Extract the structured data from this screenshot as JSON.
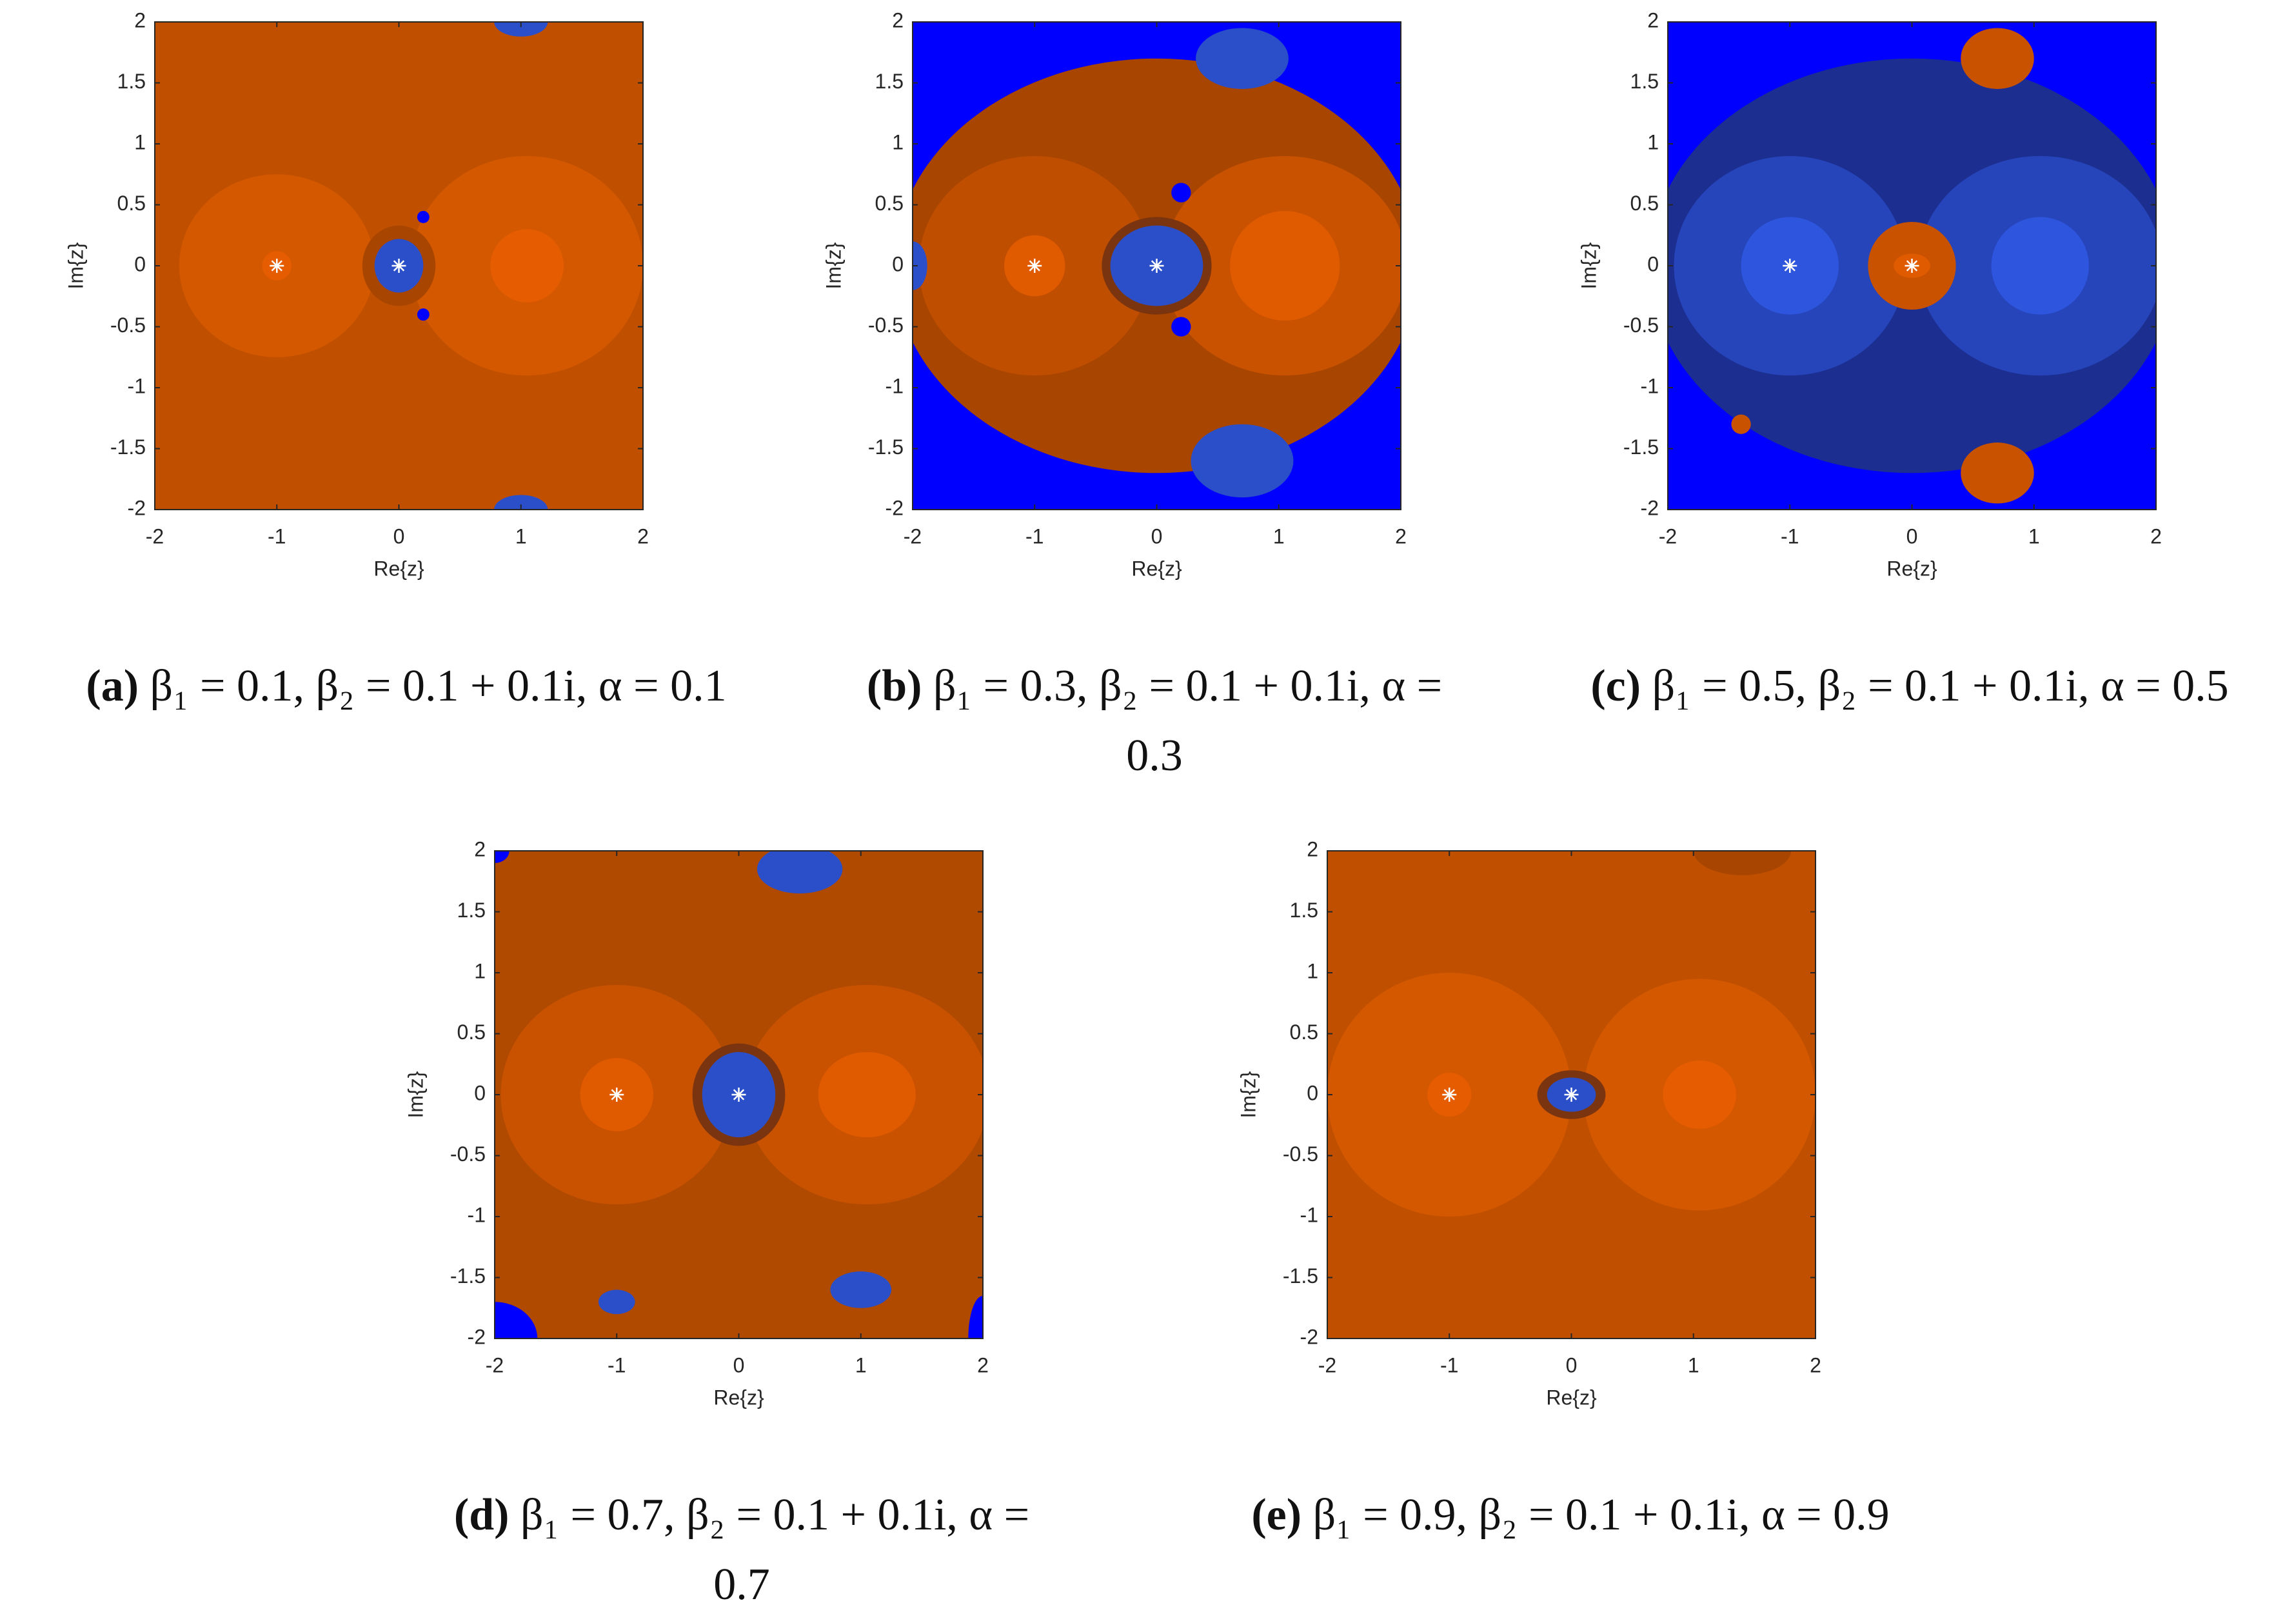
{
  "chart_data": [
    {
      "type": "basin",
      "xlabel": "Re{z}",
      "ylabel": "Im{z}",
      "xlim": [
        -2,
        2
      ],
      "ylim": [
        -2,
        2
      ],
      "xticks": [
        -2,
        -1,
        0,
        1,
        2
      ],
      "yticks": [
        -2,
        -1.5,
        -1,
        -0.5,
        0,
        0.5,
        1,
        1.5,
        2
      ],
      "markers": {
        "x": [
          -1,
          0
        ],
        "y": [
          0,
          0
        ]
      },
      "caption": {
        "label": "(a)",
        "text": "β₁ = 0.1, β₂ = 0.1 + 0.1i, α = 0.1"
      }
    },
    {
      "type": "basin",
      "xlabel": "Re{z}",
      "ylabel": "Im{z}",
      "xlim": [
        -2,
        2
      ],
      "ylim": [
        -2,
        2
      ],
      "xticks": [
        -2,
        -1,
        0,
        1,
        2
      ],
      "yticks": [
        -2,
        -1.5,
        -1,
        -0.5,
        0,
        0.5,
        1,
        1.5,
        2
      ],
      "markers": {
        "x": [
          -1,
          0
        ],
        "y": [
          0,
          0
        ]
      },
      "caption": {
        "label": "(b)",
        "text": "β₁ = 0.3, β₂ = 0.1 + 0.1i, α = 0.3"
      }
    },
    {
      "type": "basin",
      "xlabel": "Re{z}",
      "ylabel": "Im{z}",
      "xlim": [
        -2,
        2
      ],
      "ylim": [
        -2,
        2
      ],
      "xticks": [
        -2,
        -1,
        0,
        1,
        2
      ],
      "yticks": [
        -2,
        -1.5,
        -1,
        -0.5,
        0,
        0.5,
        1,
        1.5,
        2
      ],
      "markers": {
        "x": [
          -1,
          0
        ],
        "y": [
          0,
          0
        ]
      },
      "caption": {
        "label": "(c)",
        "text": "β₁ = 0.5, β₂ = 0.1 + 0.1i, α = 0.5"
      }
    },
    {
      "type": "basin",
      "xlabel": "Re{z}",
      "ylabel": "Im{z}",
      "xlim": [
        -2,
        2
      ],
      "ylim": [
        -2,
        2
      ],
      "xticks": [
        -2,
        -1,
        0,
        1,
        2
      ],
      "yticks": [
        -2,
        -1.5,
        -1,
        -0.5,
        0,
        0.5,
        1,
        1.5,
        2
      ],
      "markers": {
        "x": [
          -1,
          0
        ],
        "y": [
          0,
          0
        ]
      },
      "caption": {
        "label": "(d)",
        "text": "β₁ = 0.7, β₂ = 0.1 + 0.1i, α = 0.7"
      }
    },
    {
      "type": "basin",
      "xlabel": "Re{z}",
      "ylabel": "Im{z}",
      "xlim": [
        -2,
        2
      ],
      "ylim": [
        -2,
        2
      ],
      "xticks": [
        -2,
        -1,
        0,
        1,
        2
      ],
      "yticks": [
        -2,
        -1.5,
        -1,
        -0.5,
        0,
        0.5,
        1,
        1.5,
        2
      ],
      "markers": {
        "x": [
          -1,
          0
        ],
        "y": [
          0,
          0
        ]
      },
      "caption": {
        "label": "(e)",
        "text": "β₁ = 0.9, β₂ = 0.1 + 0.1i, α = 0.9"
      }
    }
  ]
}
